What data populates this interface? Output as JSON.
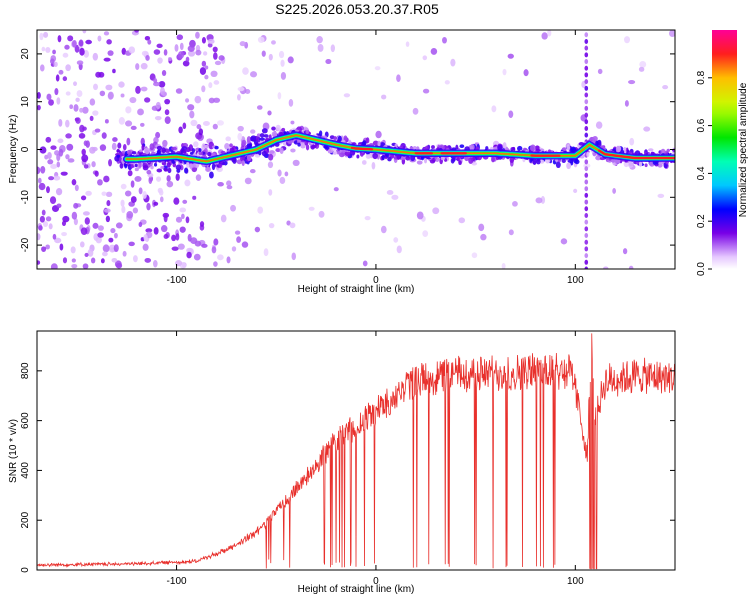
{
  "page_title": "S225.2026.053.20.37.R05",
  "chart_data": [
    {
      "type": "heatmap",
      "xlabel": "Height of straight line (km)",
      "ylabel": "Frequency (Hz)",
      "xlim": [
        -170,
        150
      ],
      "ylim": [
        -25,
        25
      ],
      "xticks": [
        -100,
        0,
        100
      ],
      "yticks": [
        -20,
        -10,
        0,
        10,
        20
      ],
      "colorbar": {
        "label": "Normalized spectral amplitude",
        "range": [
          0,
          1
        ],
        "ticks": [
          "0.0",
          "0.2",
          "0.4",
          "0.6",
          "0.8"
        ]
      },
      "ridge": [
        {
          "x": -120,
          "y": -2
        },
        {
          "x": -100,
          "y": -1.5
        },
        {
          "x": -85,
          "y": -2.5
        },
        {
          "x": -70,
          "y": -1
        },
        {
          "x": -60,
          "y": 0
        },
        {
          "x": -50,
          "y": 2
        },
        {
          "x": -40,
          "y": 3
        },
        {
          "x": -30,
          "y": 2
        },
        {
          "x": -20,
          "y": 1
        },
        {
          "x": -10,
          "y": 0.2
        },
        {
          "x": 0,
          "y": 0
        },
        {
          "x": 20,
          "y": -0.8
        },
        {
          "x": 40,
          "y": -0.8
        },
        {
          "x": 60,
          "y": -0.8
        },
        {
          "x": 80,
          "y": -1.3
        },
        {
          "x": 100,
          "y": -1.3
        },
        {
          "x": 107,
          "y": 1
        },
        {
          "x": 115,
          "y": -1
        },
        {
          "x": 130,
          "y": -1.8
        },
        {
          "x": 150,
          "y": -1.8
        }
      ],
      "grid": false
    },
    {
      "type": "line",
      "xlabel": "Height of straight line (km)",
      "ylabel": "SNR (10 * v/v)",
      "xlim": [
        -170,
        150
      ],
      "ylim": [
        0,
        960
      ],
      "xticks": [
        -100,
        0,
        100
      ],
      "yticks": [
        0,
        200,
        400,
        600,
        800
      ],
      "color": "#e8302c",
      "envelope": [
        {
          "x": -170,
          "y": 20
        },
        {
          "x": -120,
          "y": 25
        },
        {
          "x": -90,
          "y": 35
        },
        {
          "x": -75,
          "y": 80
        },
        {
          "x": -60,
          "y": 150
        },
        {
          "x": -45,
          "y": 280
        },
        {
          "x": -30,
          "y": 420
        },
        {
          "x": -20,
          "y": 520
        },
        {
          "x": -10,
          "y": 580
        },
        {
          "x": 0,
          "y": 640
        },
        {
          "x": 10,
          "y": 700
        },
        {
          "x": 20,
          "y": 760
        },
        {
          "x": 40,
          "y": 790
        },
        {
          "x": 60,
          "y": 790
        },
        {
          "x": 80,
          "y": 800
        },
        {
          "x": 98,
          "y": 800
        },
        {
          "x": 103,
          "y": 600
        },
        {
          "x": 106,
          "y": 450
        },
        {
          "x": 108,
          "y": 950
        },
        {
          "x": 110,
          "y": 600
        },
        {
          "x": 115,
          "y": 760
        },
        {
          "x": 130,
          "y": 780
        },
        {
          "x": 150,
          "y": 770
        }
      ],
      "grid": false
    }
  ]
}
